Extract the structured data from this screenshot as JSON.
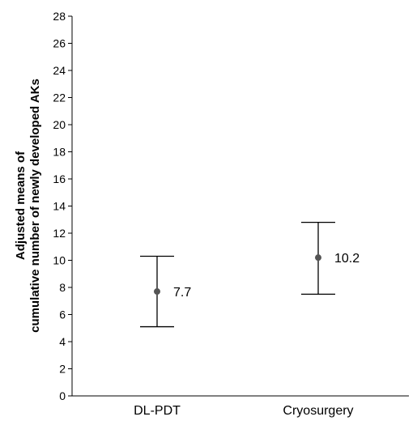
{
  "chart_data": {
    "type": "scatter",
    "title": "",
    "xlabel": "",
    "ylabel_lines": [
      "Adjusted means of",
      "cumulative number of newly developed AKs"
    ],
    "categories": [
      "DL-PDT",
      "Cryosurgery"
    ],
    "points": [
      {
        "category": "DL-PDT",
        "mean": 7.7,
        "lower": 5.1,
        "upper": 10.3,
        "label": "7.7"
      },
      {
        "category": "Cryosurgery",
        "mean": 10.2,
        "lower": 7.5,
        "upper": 12.8,
        "label": "10.2"
      }
    ],
    "ylim": [
      0,
      28
    ],
    "yticks": [
      0,
      2,
      4,
      6,
      8,
      10,
      12,
      14,
      16,
      18,
      20,
      22,
      24,
      26,
      28
    ],
    "grid": false,
    "colors": {
      "point": "#555555",
      "errorbar": "#000000",
      "axis": "#000000"
    }
  }
}
